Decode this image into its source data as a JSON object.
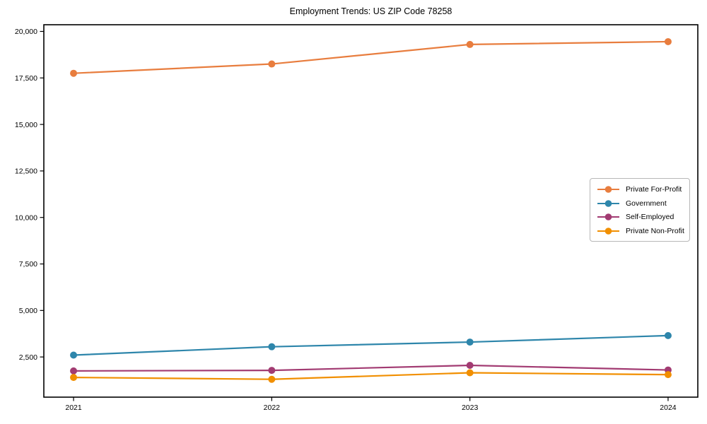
{
  "chart_data": {
    "type": "line",
    "title": "Employment Trends: US ZIP Code 78258",
    "x": [
      2021,
      2022,
      2023,
      2024
    ],
    "x_tick_labels": [
      "2021",
      "2022",
      "2023",
      "2024"
    ],
    "series": [
      {
        "name": "Private For-Profit",
        "color": "#E87D3E",
        "values": [
          17750,
          18250,
          19300,
          19450
        ]
      },
      {
        "name": "Government",
        "color": "#2E86AB",
        "values": [
          2600,
          3050,
          3300,
          3650
        ]
      },
      {
        "name": "Self-Employed",
        "color": "#A23B72",
        "values": [
          1750,
          1780,
          2050,
          1800
        ]
      },
      {
        "name": "Private Non-Profit",
        "color": "#F18F01",
        "values": [
          1400,
          1300,
          1650,
          1550
        ]
      }
    ],
    "yticks": [
      2500,
      5000,
      7500,
      10000,
      12500,
      15000,
      17500,
      20000
    ],
    "ytick_labels": [
      "2,500",
      "5,000",
      "7,500",
      "10,000",
      "12,500",
      "15,000",
      "17,500",
      "20,000"
    ],
    "ylim": [
      340,
      20360
    ],
    "xlim": [
      2020.85,
      2024.15
    ],
    "grid": false,
    "legend_position": "center-right",
    "axis_color": "#000000",
    "background_color": "#ffffff"
  }
}
